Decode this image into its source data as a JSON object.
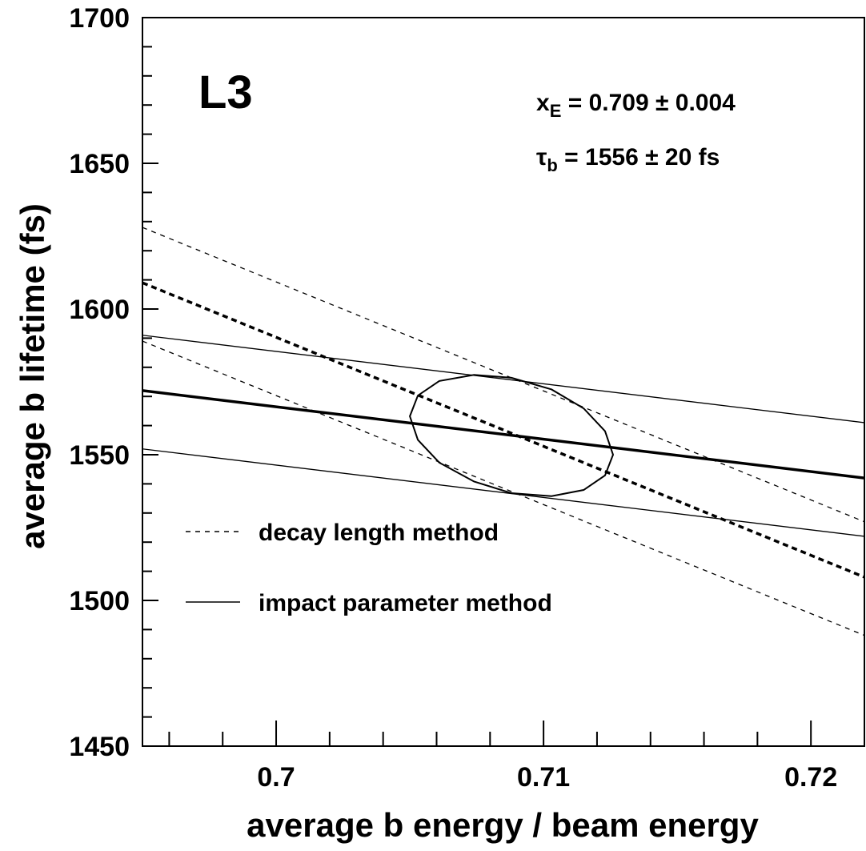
{
  "chart_data": {
    "type": "line",
    "x_label": "average b energy / beam energy",
    "y_label": "average b lifetime (fs)",
    "xlim": [
      0.695,
      0.722
    ],
    "ylim": [
      1450,
      1700
    ],
    "xticks": [
      0.7,
      0.71,
      0.72
    ],
    "yticks": [
      1450,
      1500,
      1550,
      1600,
      1650,
      1700
    ],
    "xminorticks": [
      0.696,
      0.698,
      0.702,
      0.704,
      0.706,
      0.708,
      0.712,
      0.714,
      0.716,
      0.718
    ],
    "yminorticks": [
      1460,
      1470,
      1480,
      1490,
      1510,
      1520,
      1530,
      1540,
      1560,
      1570,
      1580,
      1590,
      1610,
      1620,
      1630,
      1640,
      1660,
      1670,
      1680,
      1690
    ],
    "experiment": "L3",
    "annotations": [
      {
        "symbol": "x",
        "sub": "E",
        "text": " = 0.709 ± 0.004"
      },
      {
        "symbol": "τ",
        "sub": "b",
        "text": " = 1556 ± 20 fs"
      }
    ],
    "legend": [
      {
        "label": "decay length method",
        "style": "dashed"
      },
      {
        "label": "impact parameter method",
        "style": "solid"
      }
    ],
    "series": [
      {
        "x": [
          0.695,
          0.722
        ],
        "values": [
          1628,
          1527
        ],
        "style": "dashed",
        "width": 1.3,
        "color": "#000000"
      },
      {
        "x": [
          0.695,
          0.722
        ],
        "values": [
          1609,
          1508
        ],
        "style": "dashed",
        "width": 3.5,
        "color": "#000000"
      },
      {
        "x": [
          0.695,
          0.722
        ],
        "values": [
          1589,
          1488
        ],
        "style": "dashed",
        "width": 1.3,
        "color": "#000000"
      },
      {
        "x": [
          0.695,
          0.722
        ],
        "values": [
          1591,
          1561
        ],
        "style": "solid",
        "width": 1.3,
        "color": "#000000"
      },
      {
        "x": [
          0.695,
          0.722
        ],
        "values": [
          1572,
          1542
        ],
        "style": "solid",
        "width": 3.5,
        "color": "#000000"
      },
      {
        "x": [
          0.695,
          0.722
        ],
        "values": [
          1552,
          1522
        ],
        "style": "solid",
        "width": 1.3,
        "color": "#000000"
      },
      {
        "x": [
          0.7126,
          0.7123,
          0.7115,
          0.7103,
          0.7088,
          0.7074,
          0.7061,
          0.7053,
          0.705,
          0.7053,
          0.7061,
          0.7074,
          0.7088,
          0.7103,
          0.7115,
          0.7123
        ],
        "values": [
          1550,
          1542.9,
          1537.9,
          1535.8,
          1536.8,
          1540.8,
          1547.3,
          1555.1,
          1563.2,
          1570.3,
          1575.3,
          1577.4,
          1576.4,
          1572.4,
          1565.9,
          1558.1
        ],
        "style": "solid",
        "width": 2,
        "color": "#000000",
        "closed": true
      }
    ]
  }
}
